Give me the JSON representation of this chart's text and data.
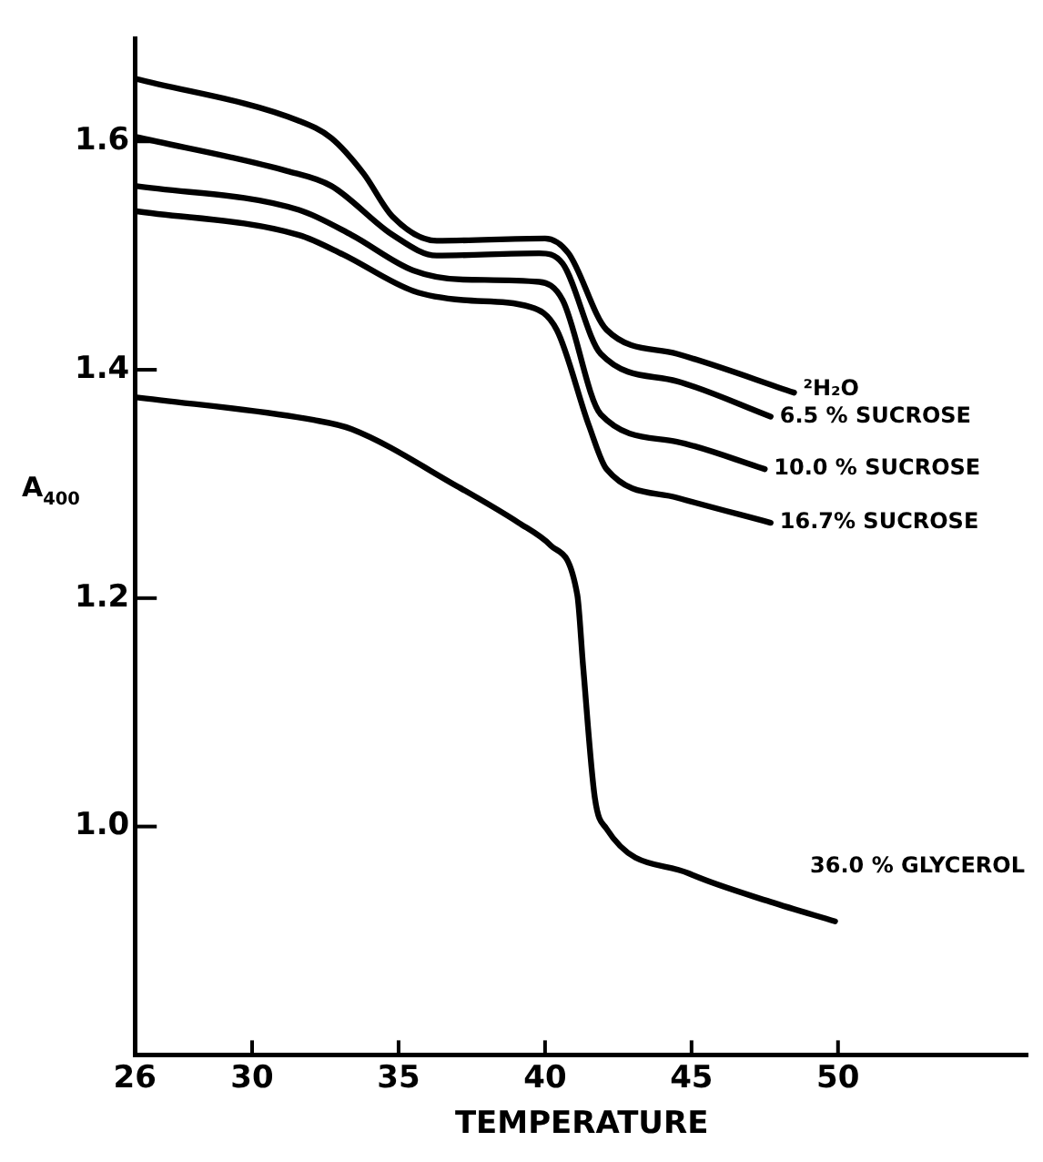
{
  "chart_data": {
    "type": "line",
    "xlabel": "TEMPERATURE",
    "ylabel": "A$_{400}$",
    "xlim": [
      26,
      56.5
    ],
    "xticks": [
      26,
      30,
      35,
      40,
      45,
      50
    ],
    "ylim": [
      0.8,
      1.69
    ],
    "yticks": [
      {
        "value": 1,
        "label": "1.0"
      },
      {
        "value": 1.2,
        "label": "1.2"
      },
      {
        "value": 1.4,
        "label": "1.4"
      },
      {
        "value": 1.6,
        "label": "1.6"
      }
    ],
    "grid": false,
    "legend": false,
    "marker": "none",
    "line_style": "solid",
    "series": [
      {
        "name": "²H₂O",
        "color": "#000000",
        "x": [
          26,
          31.6,
          32.7,
          33.8,
          34.8,
          36.3,
          40,
          40.8,
          42.1,
          44.5,
          48.5
        ],
        "values": [
          1.655,
          1.618,
          1.603,
          1.572,
          1.534,
          1.513,
          1.515,
          1.502,
          1.435,
          1.414,
          1.38
        ]
      },
      {
        "name": "6.5 % SUCROSE",
        "color": "#000000",
        "x": [
          26,
          31.2,
          32.7,
          34.8,
          36.3,
          39.8,
          40.6,
          41.9,
          44.5,
          47.7
        ],
        "values": [
          1.604,
          1.574,
          1.561,
          1.518,
          1.5,
          1.502,
          1.493,
          1.414,
          1.39,
          1.359
        ]
      },
      {
        "name": "10.0 % SUCROSE",
        "color": "#000000",
        "x": [
          26,
          31.6,
          33.4,
          35.5,
          37.2,
          39.8,
          40.6,
          41.9,
          44.5,
          47.5
        ],
        "values": [
          1.561,
          1.54,
          1.518,
          1.487,
          1.479,
          1.477,
          1.461,
          1.361,
          1.337,
          1.313
        ]
      },
      {
        "name": "16.7% SUCROSE",
        "color": "#000000",
        "x": [
          26,
          31.6,
          33.1,
          35.5,
          37.2,
          39.5,
          40.4,
          41.5,
          42.1,
          44.5,
          47.7
        ],
        "values": [
          1.539,
          1.518,
          1.501,
          1.469,
          1.461,
          1.455,
          1.435,
          1.351,
          1.313,
          1.288,
          1.266
        ]
      },
      {
        "name": "36.0 % GLYCEROL",
        "color": "#000000",
        "x": [
          26,
          32.1,
          33.4,
          37,
          39.1,
          40.2,
          41.1,
          41.3,
          41.7,
          42.1,
          44.9,
          47.7,
          49.9
        ],
        "values": [
          1.376,
          1.356,
          1.348,
          1.298,
          1.266,
          1.246,
          1.203,
          1.14,
          1.025,
          0.998,
          0.959,
          0.934,
          0.917
        ]
      }
    ]
  }
}
